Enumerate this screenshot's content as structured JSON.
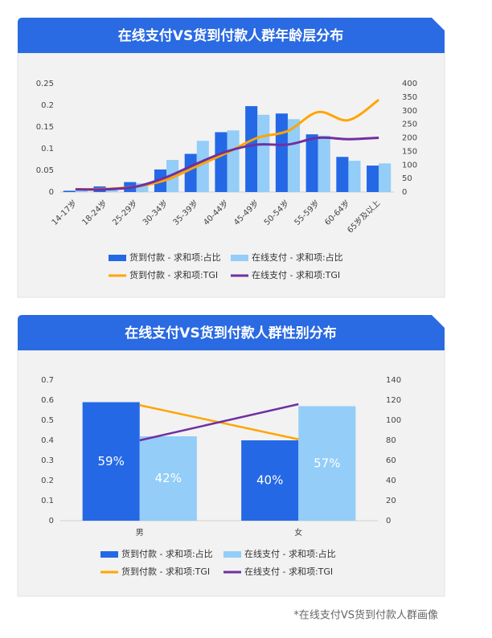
{
  "chart_data": [
    {
      "type": "bar",
      "title": "在线支付VS货到付款人群年龄层分布",
      "smooth": true,
      "grid": false,
      "categories": [
        "14-17岁",
        "18-24岁",
        "25-29岁",
        "30-34岁",
        "35-39岁",
        "40-44岁",
        "45-49岁",
        "50-54岁",
        "55-59岁",
        "60-64岁",
        "65岁及以上"
      ],
      "ylim": [
        0,
        0.25
      ],
      "yticks": [
        0,
        0.05,
        0.1,
        0.15,
        0.2,
        0.25
      ],
      "y2lim": [
        0,
        400
      ],
      "y2ticks": [
        0,
        50,
        100,
        150,
        200,
        250,
        300,
        350,
        400
      ],
      "series": [
        {
          "name": "货到付款 - 求和项:占比",
          "type": "bar",
          "color": "#2468e6",
          "values": [
            0.003,
            0.013,
            0.023,
            0.052,
            0.088,
            0.138,
            0.198,
            0.181,
            0.133,
            0.081,
            0.061
          ]
        },
        {
          "name": "在线支付 - 求和项:占比",
          "type": "bar",
          "color": "#93cdf8",
          "values": [
            0.005,
            0.008,
            0.02,
            0.074,
            0.118,
            0.142,
            0.178,
            0.168,
            0.13,
            0.072,
            0.066
          ]
        },
        {
          "name": "货到付款 - 求和项:TGI",
          "type": "line",
          "axis": "y2",
          "color": "#ffa500",
          "values": [
            10,
            12,
            20,
            45,
            95,
            145,
            200,
            225,
            295,
            265,
            340
          ]
        },
        {
          "name": "在线支付 - 求和项:TGI",
          "type": "line",
          "axis": "y2",
          "color": "#7030a0",
          "values": [
            10,
            10,
            20,
            55,
            105,
            150,
            175,
            175,
            200,
            195,
            200
          ]
        }
      ]
    },
    {
      "type": "bar",
      "title": "在线支付VS货到付款人群性别分布",
      "smooth": false,
      "grid": false,
      "categories": [
        "男",
        "女"
      ],
      "ylim": [
        0,
        0.7
      ],
      "yticks": [
        0,
        0.1,
        0.2,
        0.3,
        0.4,
        0.5,
        0.6,
        0.7
      ],
      "y2lim": [
        0,
        140
      ],
      "y2ticks": [
        0,
        20,
        40,
        60,
        80,
        100,
        120,
        140
      ],
      "series": [
        {
          "name": "货到付款 - 求和项:占比",
          "type": "bar",
          "color": "#2468e6",
          "values": [
            0.59,
            0.4
          ],
          "value_labels": [
            "59%",
            "40%"
          ]
        },
        {
          "name": "在线支付 - 求和项:占比",
          "type": "bar",
          "color": "#93cdf8",
          "values": [
            0.42,
            0.57
          ],
          "value_labels": [
            "42%",
            "57%"
          ]
        },
        {
          "name": "货到付款 - 求和项:TGI",
          "type": "line",
          "axis": "y2",
          "color": "#ffa500",
          "values": [
            115,
            81
          ]
        },
        {
          "name": "在线支付 - 求和项:TGI",
          "type": "line",
          "axis": "y2",
          "color": "#7030a0",
          "values": [
            80,
            116
          ]
        }
      ]
    }
  ],
  "footnote": "*在线支付VS货到付款人群画像"
}
